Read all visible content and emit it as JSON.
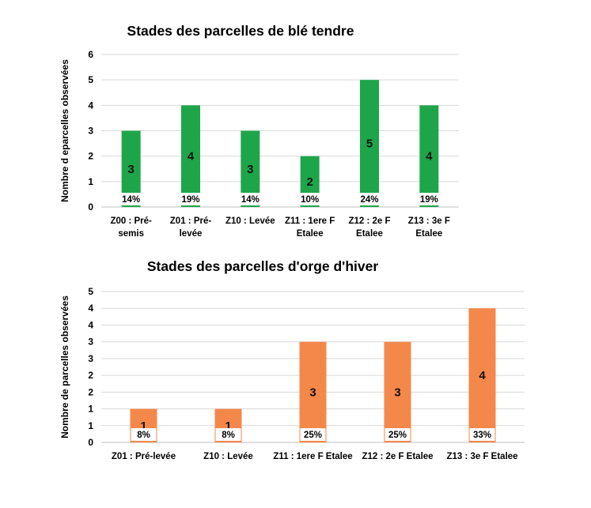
{
  "chart_data": [
    {
      "type": "bar",
      "title": "Stades des parcelles de blé tendre",
      "ylabel": "Nombre d eparcelles  observées",
      "ylim": [
        0,
        6
      ],
      "yticks": [
        "0",
        "1",
        "2",
        "3",
        "4",
        "5",
        "6"
      ],
      "grid": true,
      "color": "#1ea54a",
      "categories": [
        [
          "Z00 : Pré-",
          "semis"
        ],
        [
          "Z01 : Pré-",
          "levée"
        ],
        [
          "Z10 : Levée"
        ],
        [
          "Z11 : 1ere F",
          "Etalee"
        ],
        [
          "Z12 : 2e F",
          "Etalee"
        ],
        [
          "Z13 : 3e F",
          "Etalee"
        ]
      ],
      "values": [
        3,
        4,
        3,
        2,
        5,
        4
      ],
      "value_labels": [
        "3",
        "4",
        "3",
        "2",
        "5",
        "4"
      ],
      "percent_labels": [
        "14%",
        "19%",
        "14%",
        "10%",
        "24%",
        "19%"
      ]
    },
    {
      "type": "bar",
      "title": "Stades des parcelles d'orge d'hiver",
      "ylabel": "Nombre de parcelles  observées",
      "ylim": [
        0,
        4.5
      ],
      "yticks": [
        "0",
        "1",
        "1",
        "2",
        "2",
        "3",
        "3",
        "4",
        "4",
        "5"
      ],
      "grid": true,
      "color": "#f4884a",
      "categories": [
        [
          "Z01 : Pré-levée"
        ],
        [
          "Z10 : Levée"
        ],
        [
          "Z11 : 1ere F Etalee"
        ],
        [
          "Z12 : 2e F Etalee"
        ],
        [
          "Z13 : 3e F Etalee"
        ]
      ],
      "values": [
        1,
        1,
        3,
        3,
        4
      ],
      "value_labels": [
        "1",
        "1",
        "3",
        "3",
        "4"
      ],
      "percent_labels": [
        "8%",
        "8%",
        "25%",
        "25%",
        "33%"
      ]
    }
  ]
}
